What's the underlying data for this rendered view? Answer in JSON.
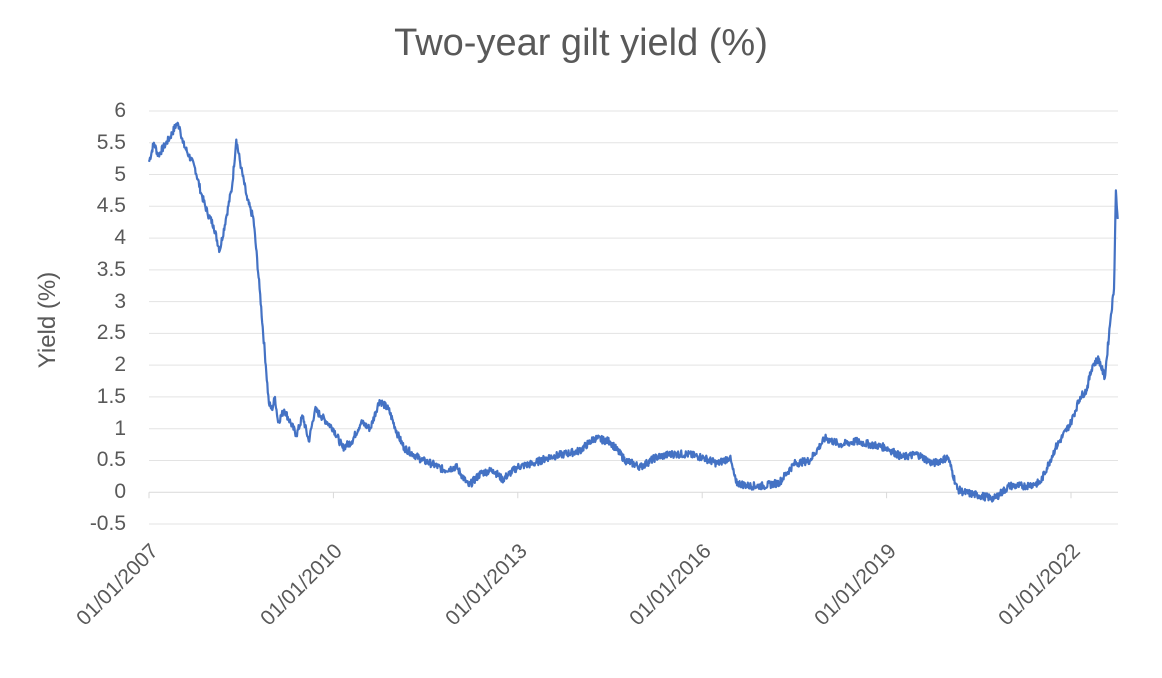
{
  "chart_data": {
    "type": "line",
    "title": "Two-year gilt yield (%)",
    "xlabel": "",
    "ylabel": "Yield (%)",
    "ylim": [
      -0.5,
      6
    ],
    "yticks": [
      "6",
      "5.5",
      "5",
      "4.5",
      "4",
      "3.5",
      "3",
      "2.5",
      "2",
      "1.5",
      "1",
      "0.5",
      "0",
      "-0.5"
    ],
    "xticks": [
      "01/01/2007",
      "01/01/2010",
      "01/01/2013",
      "01/01/2016",
      "01/01/2019",
      "01/01/2022"
    ],
    "grid": true,
    "legend": "none",
    "line_color": "#4472C4",
    "series": [
      {
        "name": "Two-year gilt yield",
        "x": [
          2007.0,
          2007.08,
          2007.15,
          2007.25,
          2007.35,
          2007.45,
          2007.5,
          2007.55,
          2007.65,
          2007.75,
          2007.85,
          2007.95,
          2008.05,
          2008.15,
          2008.25,
          2008.35,
          2008.42,
          2008.5,
          2008.6,
          2008.7,
          2008.8,
          2008.9,
          2008.95,
          2009.0,
          2009.05,
          2009.1,
          2009.2,
          2009.3,
          2009.4,
          2009.5,
          2009.6,
          2009.7,
          2009.8,
          2009.9,
          2010.0,
          2010.15,
          2010.3,
          2010.45,
          2010.6,
          2010.75,
          2010.9,
          2011.05,
          2011.15,
          2011.3,
          2011.45,
          2011.6,
          2011.8,
          2012.0,
          2012.2,
          2012.4,
          2012.6,
          2012.75,
          2013.0,
          2013.25,
          2013.5,
          2013.75,
          2014.0,
          2014.25,
          2014.5,
          2014.75,
          2015.0,
          2015.25,
          2015.5,
          2015.75,
          2016.0,
          2016.25,
          2016.45,
          2016.55,
          2016.75,
          2017.0,
          2017.25,
          2017.5,
          2017.75,
          2018.0,
          2018.25,
          2018.5,
          2018.75,
          2019.0,
          2019.25,
          2019.5,
          2019.75,
          2020.0,
          2020.15,
          2020.25,
          2020.5,
          2020.75,
          2021.0,
          2021.25,
          2021.5,
          2021.75,
          2022.0,
          2022.15,
          2022.25,
          2022.35,
          2022.45,
          2022.55,
          2022.65,
          2022.7,
          2022.73,
          2022.76
        ],
        "values": [
          5.2,
          5.5,
          5.3,
          5.45,
          5.6,
          5.8,
          5.75,
          5.5,
          5.3,
          5.1,
          4.7,
          4.4,
          4.2,
          3.8,
          4.3,
          4.8,
          5.55,
          5.1,
          4.6,
          4.3,
          3.2,
          2.0,
          1.4,
          1.3,
          1.5,
          1.1,
          1.3,
          1.1,
          0.9,
          1.2,
          0.8,
          1.3,
          1.2,
          1.1,
          1.0,
          0.7,
          0.8,
          1.1,
          1.0,
          1.45,
          1.3,
          0.9,
          0.7,
          0.6,
          0.5,
          0.45,
          0.35,
          0.4,
          0.1,
          0.3,
          0.35,
          0.2,
          0.4,
          0.45,
          0.55,
          0.6,
          0.65,
          0.85,
          0.8,
          0.5,
          0.4,
          0.55,
          0.6,
          0.6,
          0.55,
          0.45,
          0.55,
          0.15,
          0.1,
          0.1,
          0.15,
          0.45,
          0.5,
          0.85,
          0.75,
          0.8,
          0.75,
          0.7,
          0.55,
          0.6,
          0.45,
          0.55,
          0.05,
          0.0,
          -0.05,
          -0.1,
          0.1,
          0.1,
          0.15,
          0.7,
          1.1,
          1.5,
          1.6,
          2.0,
          2.1,
          1.8,
          2.8,
          3.2,
          4.75,
          4.3
        ]
      }
    ]
  }
}
